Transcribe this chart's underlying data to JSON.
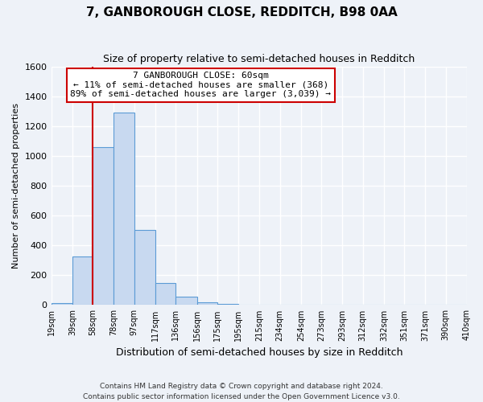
{
  "title": "7, GANBOROUGH CLOSE, REDDITCH, B98 0AA",
  "subtitle": "Size of property relative to semi-detached houses in Redditch",
  "xlabel": "Distribution of semi-detached houses by size in Redditch",
  "ylabel": "Number of semi-detached properties",
  "bin_edges": [
    19,
    39,
    58,
    78,
    97,
    117,
    136,
    156,
    175,
    195,
    215,
    234,
    254,
    273,
    293,
    312,
    332,
    351,
    371,
    390,
    410
  ],
  "counts": [
    15,
    325,
    1060,
    1290,
    505,
    150,
    55,
    20,
    10,
    0,
    0,
    0,
    0,
    0,
    0,
    0,
    0,
    0,
    0,
    0
  ],
  "bar_color": "#c8d9f0",
  "bar_edge_color": "#5b9bd5",
  "property_line_x": 58,
  "annotation_title": "7 GANBOROUGH CLOSE: 60sqm",
  "annotation_line1": "← 11% of semi-detached houses are smaller (368)",
  "annotation_line2": "89% of semi-detached houses are larger (3,039) →",
  "annotation_box_color": "#ffffff",
  "annotation_box_edge": "#cc0000",
  "vline_color": "#cc0000",
  "ylim": [
    0,
    1600
  ],
  "yticks": [
    0,
    200,
    400,
    600,
    800,
    1000,
    1200,
    1400,
    1600
  ],
  "tick_labels": [
    "19sqm",
    "39sqm",
    "58sqm",
    "78sqm",
    "97sqm",
    "117sqm",
    "136sqm",
    "156sqm",
    "175sqm",
    "195sqm",
    "215sqm",
    "234sqm",
    "254sqm",
    "273sqm",
    "293sqm",
    "312sqm",
    "332sqm",
    "351sqm",
    "371sqm",
    "390sqm",
    "410sqm"
  ],
  "footer_line1": "Contains HM Land Registry data © Crown copyright and database right 2024.",
  "footer_line2": "Contains public sector information licensed under the Open Government Licence v3.0.",
  "background_color": "#eef2f8",
  "grid_color": "#ffffff"
}
